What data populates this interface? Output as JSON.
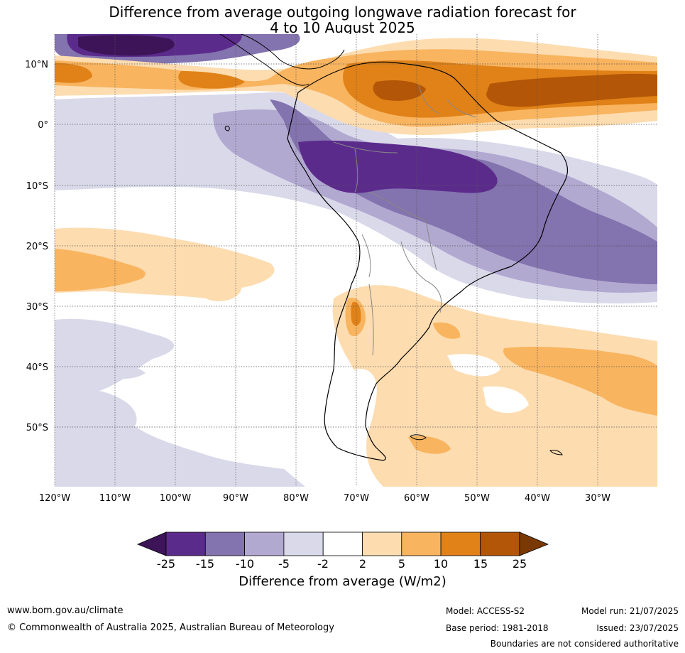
{
  "title": {
    "line1": "Difference from average outgoing longwave radiation forecast for",
    "line2": "4 to 10 August 2025"
  },
  "map": {
    "lat_labels": [
      "10°N",
      "0°",
      "10°S",
      "20°S",
      "30°S",
      "40°S",
      "50°S"
    ],
    "lon_labels": [
      "120°W",
      "110°W",
      "100°W",
      "90°W",
      "80°W",
      "70°W",
      "60°W",
      "50°W",
      "40°W",
      "30°W"
    ]
  },
  "legend": {
    "ticks": [
      "-25",
      "-15",
      "-10",
      "-5",
      "-2",
      "2",
      "5",
      "10",
      "15",
      "25"
    ],
    "colors": [
      "#3d1458",
      "#5b2b8c",
      "#8373ae",
      "#b2a9d1",
      "#d9d9ea",
      "#ffffff",
      "#fddcb0",
      "#f9b45f",
      "#e08218",
      "#b35607",
      "#7a3904"
    ],
    "title": "Difference from average (W/m2)"
  },
  "footer": {
    "url": "www.bom.gov.au/climate",
    "copyright": "© Commonwealth of Australia 2025, Australian Bureau of Meteorology",
    "model": "Model: ACCESS-S2",
    "base_period": "Base period: 1981-2018",
    "model_run": "Model run: 21/07/2025",
    "issued": "Issued: 23/07/2025",
    "disclaimer": "Boundaries are not considered authoritative"
  }
}
